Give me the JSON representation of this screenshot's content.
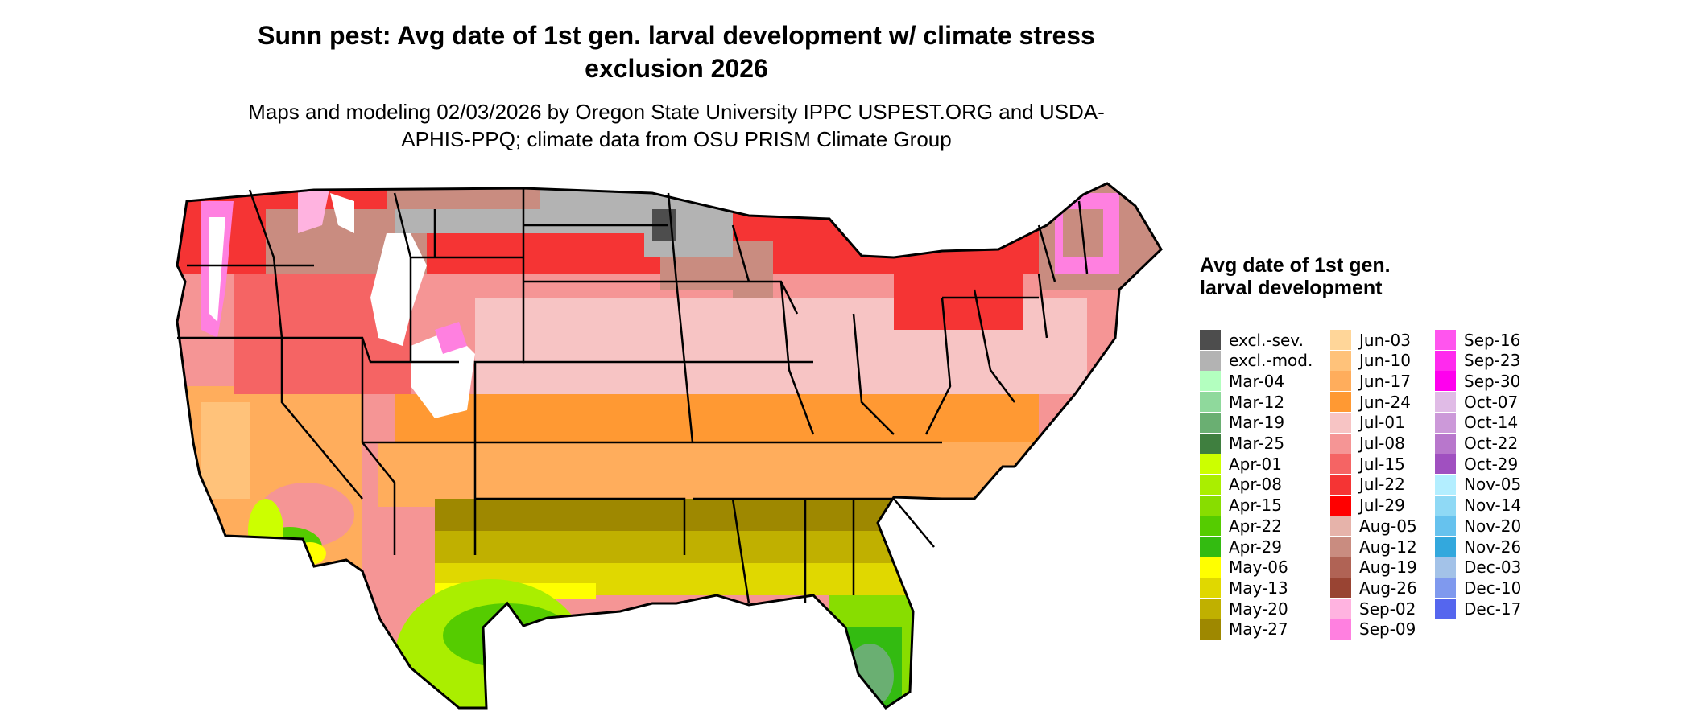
{
  "title": "Sunn pest: Avg date of 1st gen. larval development w/ climate stress exclusion 2026",
  "subtitle": "Maps and modeling 02/03/2026 by Oregon State University IPPC USPEST.ORG and USDA-APHIS-PPQ; climate data from OSU PRISM Climate Group",
  "legend": {
    "title": "Avg date of 1st gen. larval development",
    "columns": [
      [
        {
          "label": "excl.-sev.",
          "color": "#4d4d4d"
        },
        {
          "label": "excl.-mod.",
          "color": "#b3b3b3"
        },
        {
          "label": "Mar-04",
          "color": "#b3ffbf"
        },
        {
          "label": "Mar-12",
          "color": "#8fd99c"
        },
        {
          "label": "Mar-19",
          "color": "#6aaf72"
        },
        {
          "label": "Mar-25",
          "color": "#3f7f3f"
        },
        {
          "label": "Apr-01",
          "color": "#ccff00"
        },
        {
          "label": "Apr-08",
          "color": "#aaee00"
        },
        {
          "label": "Apr-15",
          "color": "#88dd00"
        },
        {
          "label": "Apr-22",
          "color": "#55cc00"
        },
        {
          "label": "Apr-29",
          "color": "#33bb11"
        },
        {
          "label": "May-06",
          "color": "#ffff00"
        },
        {
          "label": "May-13",
          "color": "#e0d800"
        },
        {
          "label": "May-20",
          "color": "#c0b000"
        },
        {
          "label": "May-27",
          "color": "#9e8800"
        }
      ],
      [
        {
          "label": "Jun-03",
          "color": "#ffd699"
        },
        {
          "label": "Jun-10",
          "color": "#ffc27a"
        },
        {
          "label": "Jun-17",
          "color": "#ffad5c"
        },
        {
          "label": "Jun-24",
          "color": "#ff9933"
        },
        {
          "label": "Jul-01",
          "color": "#f7c4c4"
        },
        {
          "label": "Jul-08",
          "color": "#f59595"
        },
        {
          "label": "Jul-15",
          "color": "#f56464"
        },
        {
          "label": "Jul-22",
          "color": "#f53434"
        },
        {
          "label": "Jul-29",
          "color": "#ff0000"
        },
        {
          "label": "Aug-05",
          "color": "#e6b3aa"
        },
        {
          "label": "Aug-12",
          "color": "#c98c80"
        },
        {
          "label": "Aug-19",
          "color": "#b06355"
        },
        {
          "label": "Aug-26",
          "color": "#994433"
        },
        {
          "label": "Sep-02",
          "color": "#ffb3e0"
        },
        {
          "label": "Sep-09",
          "color": "#ff80e0"
        }
      ],
      [
        {
          "label": "Sep-16",
          "color": "#ff55ee"
        },
        {
          "label": "Sep-23",
          "color": "#ff2aee"
        },
        {
          "label": "Sep-30",
          "color": "#ff00ee"
        },
        {
          "label": "Oct-07",
          "color": "#e0bbe6"
        },
        {
          "label": "Oct-14",
          "color": "#cc99d9"
        },
        {
          "label": "Oct-22",
          "color": "#b877cc"
        },
        {
          "label": "Oct-29",
          "color": "#a050c0"
        },
        {
          "label": "Nov-05",
          "color": "#b3eeff"
        },
        {
          "label": "Nov-14",
          "color": "#8fd9f5"
        },
        {
          "label": "Nov-20",
          "color": "#66c2ee"
        },
        {
          "label": "Nov-26",
          "color": "#33a8dd"
        },
        {
          "label": "Dec-03",
          "color": "#a3c2e8"
        },
        {
          "label": "Dec-10",
          "color": "#7f99ee"
        },
        {
          "label": "Dec-17",
          "color": "#5566ee"
        }
      ]
    ]
  }
}
